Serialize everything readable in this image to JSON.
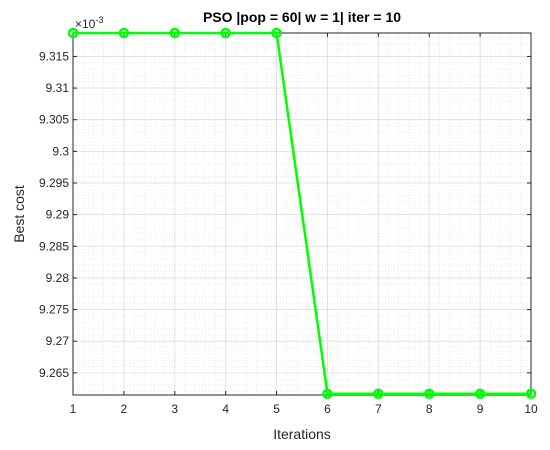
{
  "chart_data": {
    "type": "line",
    "title": "PSO |pop = 60| w = 1| iter = 10",
    "xlabel": "Iterations",
    "ylabel": "Best cost",
    "y_exponent_base": "×10",
    "y_exponent_power": "-3",
    "xlim": [
      1,
      10
    ],
    "ylim": [
      9.2615,
      9.3187
    ],
    "x_ticks": [
      1,
      2,
      3,
      4,
      5,
      6,
      7,
      8,
      9,
      10
    ],
    "x_tick_labels": [
      "1",
      "2",
      "3",
      "4",
      "5",
      "6",
      "7",
      "8",
      "9",
      "10"
    ],
    "y_ticks": [
      9.265,
      9.27,
      9.275,
      9.28,
      9.285,
      9.29,
      9.295,
      9.3,
      9.305,
      9.31,
      9.315
    ],
    "y_tick_labels": [
      "9.265",
      "9.27",
      "9.275",
      "9.28",
      "9.285",
      "9.29",
      "9.295",
      "9.3",
      "9.305",
      "9.31",
      "9.315"
    ],
    "grid": true,
    "minor_grid": true,
    "series": [
      {
        "x": [
          1,
          2,
          3,
          4,
          5,
          6,
          7,
          8,
          9,
          10
        ],
        "values": [
          9.3187,
          9.3187,
          9.3187,
          9.3187,
          9.3187,
          9.2617,
          9.2617,
          9.2617,
          9.2617,
          9.2617
        ],
        "color": "#00ff00",
        "marker": "circle"
      }
    ]
  }
}
